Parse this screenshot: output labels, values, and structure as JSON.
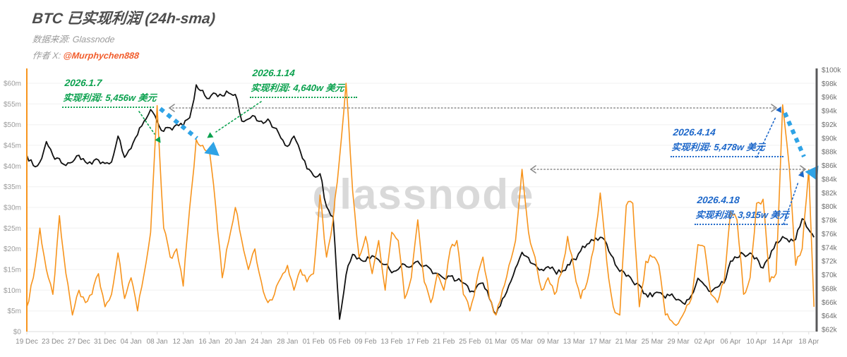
{
  "header": {
    "title": "BTC 已实现利润 (24h-sma)",
    "source_label": "数据来源: Glassnode",
    "author_label": "作者 X:",
    "author_handle": "@Murphychen888"
  },
  "watermark": "glassnode",
  "colors": {
    "realized_profit_line": "#F7941D",
    "price_line": "#111111",
    "green_annotation": "#0aa14e",
    "blue_annotation": "#1b66c9",
    "thick_blue_arrow": "#2fa3e6",
    "gray_reference_arrow": "#8a8a8a",
    "author_handle": "#F15B2A"
  },
  "annotations": [
    {
      "date": "2026.1.7",
      "text": "实现利润: 5,456w 美元",
      "color": "green"
    },
    {
      "date": "2026.1.14",
      "text": "实现利润: 4,640w 美元",
      "color": "green"
    },
    {
      "date": "2026.4.14",
      "text": "实现利润: 5,478w 美元",
      "color": "blue"
    },
    {
      "date": "2026.4.18",
      "text": "实现利润: 3,915w 美元",
      "color": "blue"
    }
  ],
  "reference_arrows": [
    {
      "type": "horizontal-double-headed-dotted",
      "level_left_axis": "≈$54m",
      "from": "08 Jan profit peak",
      "to": "14 Apr profit peak"
    },
    {
      "type": "horizontal-double-headed-dotted",
      "level_left_axis": "≈$39m",
      "from": "05 Mar profit peak",
      "to": "18 Apr profit peak"
    }
  ],
  "decline_arrows": [
    {
      "from": "2026.1.7 峰值 5,456w",
      "to": "2026.1.14 峰值 4,640w"
    },
    {
      "from": "2026.4.14 峰值 5,478w",
      "to": "2026.4.18 峰值 3,915w"
    }
  ],
  "chart_data": {
    "type": "line",
    "title": "BTC 已实现利润 (24h-sma)",
    "x_start": "19 Dec",
    "x_end": "18 Apr",
    "x_interval": "daily",
    "x_tick_labels": [
      "19 Dec",
      "23 Dec",
      "27 Dec",
      "31 Dec",
      "04 Jan",
      "08 Jan",
      "12 Jan",
      "16 Jan",
      "20 Jan",
      "24 Jan",
      "28 Jan",
      "01 Feb",
      "05 Feb",
      "09 Feb",
      "13 Feb",
      "17 Feb",
      "21 Feb",
      "25 Feb",
      "01 Mar",
      "05 Mar",
      "09 Mar",
      "13 Mar",
      "17 Mar",
      "21 Mar",
      "25 Mar",
      "29 Mar",
      "02 Apr",
      "06 Apr",
      "10 Apr",
      "14 Apr",
      "18 Apr"
    ],
    "left_axis": {
      "unit": "USD (millions)",
      "min": 0,
      "max": 60,
      "ticks": [
        "$60m",
        "$55m",
        "$50m",
        "$45m",
        "$40m",
        "$35m",
        "$30m",
        "$25m",
        "$20m",
        "$15m",
        "$10m",
        "$5m",
        "$0"
      ]
    },
    "right_axis": {
      "unit": "USD (thousands)",
      "min": 62,
      "max": 100,
      "ticks": [
        "$100k",
        "$98k",
        "$96k",
        "$94k",
        "$92k",
        "$90k",
        "$88k",
        "$86k",
        "$84k",
        "$82k",
        "$80k",
        "$78k",
        "$76k",
        "$74k",
        "$72k",
        "$70k",
        "$68k",
        "$66k",
        "$64k",
        "$62k"
      ]
    },
    "grid": "horizontal-light",
    "legend": "none",
    "series": [
      {
        "name": "BTC 已实现利润 (24h-sma)",
        "axis": "left",
        "unit": "$m",
        "color": "#F7941D",
        "values": [
          6,
          13,
          25,
          15,
          9,
          28,
          14,
          4,
          10,
          7,
          9,
          14,
          6,
          9,
          19,
          8,
          13,
          5,
          14,
          24,
          54.6,
          25,
          18,
          20,
          11,
          30,
          46.4,
          45,
          44,
          30,
          13,
          22,
          30,
          22,
          15,
          20,
          12,
          7,
          9,
          13,
          16,
          10,
          15,
          12,
          14,
          33,
          18,
          27,
          42,
          60,
          34,
          18,
          23,
          14,
          22,
          10,
          24,
          22,
          8,
          13,
          27,
          12,
          7,
          14,
          10,
          20,
          22,
          9,
          5,
          12,
          18,
          8,
          4,
          10,
          16,
          22,
          39.2,
          24,
          18,
          10,
          13,
          9,
          14,
          23,
          15,
          8,
          12,
          20,
          33.5,
          17,
          6,
          4,
          30.5,
          31,
          6,
          17,
          18,
          16,
          4,
          2.5,
          2,
          5,
          8,
          21,
          20.5,
          9,
          7,
          12,
          29,
          27,
          9,
          13,
          31,
          32,
          12,
          14,
          54.78,
          40,
          16,
          20,
          39.15
        ],
        "tail_end_of_last_day": 6
      },
      {
        "name": "BTC 价格",
        "axis": "right",
        "unit": "$k",
        "color": "#111111",
        "values": [
          87.5,
          86,
          86.5,
          89.5,
          87.5,
          87,
          86,
          86.5,
          87.5,
          86.5,
          86.2,
          86.8,
          86.3,
          86.5,
          90.3,
          87.2,
          88.5,
          90.5,
          92.5,
          94.2,
          92.5,
          91,
          91.5,
          92,
          91.8,
          93,
          97.8,
          97,
          95.8,
          96.5,
          96.2,
          96.6,
          96.4,
          92.5,
          92.8,
          93.2,
          92.5,
          92.8,
          91.5,
          90,
          88.8,
          90.3,
          88,
          85.5,
          84.5,
          84.8,
          80,
          78.5,
          63.5,
          70,
          73,
          72.5,
          72,
          72.8,
          72.2,
          71.5,
          70.3,
          70.8,
          71.5,
          71.2,
          72,
          71.3,
          70.8,
          70.2,
          69.5,
          69.8,
          69.2,
          68.8,
          67.5,
          68.2,
          68.8,
          66.5,
          64.2,
          66.5,
          68.5,
          71,
          73.3,
          72.5,
          71.5,
          70.8,
          71.2,
          70.6,
          70.3,
          71.5,
          72.3,
          73.5,
          74.5,
          75,
          75.5,
          74.5,
          72.5,
          70.5,
          69.8,
          69,
          68.5,
          67.2,
          66.8,
          67.4,
          66.6,
          67.2,
          66.4,
          65.7,
          67,
          69.5,
          68.5,
          67.5,
          68.2,
          68.8,
          72,
          72.5,
          73,
          73.2,
          72.5,
          71,
          72.5,
          74.8,
          75.6,
          74.8,
          75.2,
          78.2,
          76.6
        ],
        "tail_end_of_last_day": 75.5
      }
    ]
  }
}
